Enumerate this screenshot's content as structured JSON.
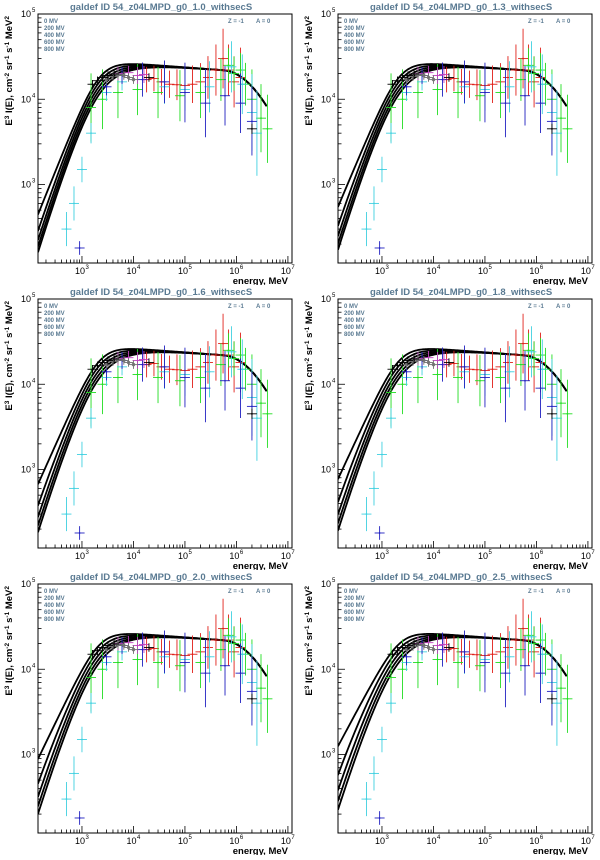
{
  "figure": {
    "legend_labels": [
      "0 MV",
      "200 MV",
      "400 MV",
      "600 MV",
      "800 MV"
    ],
    "z_label": "Z = -1",
    "a_label": "A = 0",
    "xlabel": "energy, MeV",
    "ylabel_parts": [
      "E",
      "3",
      " I(E), cm",
      "-2",
      " sr",
      "-1",
      " s",
      "-1",
      " MeV",
      "2"
    ],
    "x_ticks": [
      {
        "base": "10",
        "exp": "3",
        "value": 1000
      },
      {
        "base": "10",
        "exp": "4",
        "value": 10000
      },
      {
        "base": "10",
        "exp": "5",
        "value": 100000
      },
      {
        "base": "10",
        "exp": "6",
        "value": 1000000
      },
      {
        "base": "10",
        "exp": "7",
        "value": 10000000
      }
    ],
    "y_ticks": [
      {
        "base": "10",
        "exp": "3",
        "value": 1000
      },
      {
        "base": "10",
        "exp": "4",
        "value": 10000
      },
      {
        "base": "10",
        "exp": "5",
        "value": 100000
      }
    ]
  },
  "chart_data": [
    {
      "type": "line",
      "title": "galdef ID 54_z04LMPD_g0_1.0_withsecS",
      "gamma": "1.0",
      "xlabel": "energy, MeV",
      "ylabel": "E^3 I(E), cm^-2 sr^-1 s^-1 MeV^2",
      "xlim": [
        140,
        12000000
      ],
      "ylim": [
        120,
        100000
      ],
      "xscale": "log",
      "yscale": "log",
      "modulation_MV": [
        0,
        200,
        400,
        600,
        800
      ]
    },
    {
      "type": "line",
      "title": "galdef ID 54_z04LMPD_g0_1.3_withsecS",
      "gamma": "1.3",
      "xlabel": "energy, MeV",
      "ylabel": "E^3 I(E), cm^-2 sr^-1 s^-1 MeV^2",
      "xlim": [
        140,
        12000000
      ],
      "ylim": [
        120,
        100000
      ],
      "xscale": "log",
      "yscale": "log",
      "modulation_MV": [
        0,
        200,
        400,
        600,
        800
      ]
    },
    {
      "type": "line",
      "title": "galdef ID 54_z04LMPD_g0_1.6_withsecS",
      "gamma": "1.6",
      "xlabel": "energy, MeV",
      "ylabel": "E^3 I(E), cm^-2 sr^-1 s^-1 MeV^2",
      "xlim": [
        140,
        12000000
      ],
      "ylim": [
        120,
        100000
      ],
      "xscale": "log",
      "yscale": "log",
      "modulation_MV": [
        0,
        200,
        400,
        600,
        800
      ]
    },
    {
      "type": "line",
      "title": "galdef ID 54_z04LMPD_g0_1.8_withsecS",
      "gamma": "1.8",
      "xlabel": "energy, MeV",
      "ylabel": "E^3 I(E), cm^-2 sr^-1 s^-1 MeV^2",
      "xlim": [
        140,
        12000000
      ],
      "ylim": [
        120,
        100000
      ],
      "xscale": "log",
      "yscale": "log",
      "modulation_MV": [
        0,
        200,
        400,
        600,
        800
      ]
    },
    {
      "type": "line",
      "title": "galdef ID 54_z04LMPD_g0_2.0_withsecS",
      "gamma": "2.0",
      "xlabel": "energy, MeV",
      "ylabel": "E^3 I(E), cm^-2 sr^-1 s^-1 MeV^2",
      "xlim": [
        140,
        12000000
      ],
      "ylim": [
        120,
        100000
      ],
      "xscale": "log",
      "yscale": "log",
      "modulation_MV": [
        0,
        200,
        400,
        600,
        800
      ]
    },
    {
      "type": "line",
      "title": "galdef ID 54_z04LMPD_g0_2.5_withsecS",
      "gamma": "2.5",
      "xlabel": "energy, MeV",
      "ylabel": "E^3 I(E), cm^-2 sr^-1 s^-1 MeV^2",
      "xlim": [
        140,
        12000000
      ],
      "ylim": [
        120,
        100000
      ],
      "xscale": "log",
      "yscale": "log",
      "modulation_MV": [
        0,
        200,
        400,
        600,
        800
      ]
    }
  ],
  "datasets": [
    {
      "name": "red",
      "color": "#e0201a",
      "marker": "cross",
      "points": [
        [
          18000,
          17000,
          0.15
        ],
        [
          25000,
          17500,
          0.15
        ],
        [
          35000,
          16000,
          0.15
        ],
        [
          50000,
          15000,
          0.16
        ],
        [
          70000,
          14800,
          0.18
        ],
        [
          100000,
          14500,
          0.2
        ],
        [
          140000,
          15000,
          0.22
        ],
        [
          200000,
          16000,
          0.22
        ],
        [
          280000,
          18000,
          0.25
        ],
        [
          400000,
          22000,
          0.3
        ],
        [
          550000,
          30000,
          0.35
        ],
        [
          700000,
          22000,
          0.3
        ],
        [
          900000,
          16000,
          0.3
        ],
        [
          1200000,
          18000,
          0.35
        ]
      ]
    },
    {
      "name": "green",
      "color": "#22dd22",
      "marker": "cross",
      "points": [
        [
          1500,
          8000,
          0.4
        ],
        [
          2500,
          10000,
          0.35
        ],
        [
          5000,
          12000,
          0.3
        ],
        [
          12000,
          13000,
          0.3
        ],
        [
          30000,
          12000,
          0.3
        ],
        [
          80000,
          11000,
          0.3
        ],
        [
          200000,
          12000,
          0.3
        ],
        [
          500000,
          17000,
          0.25
        ],
        [
          700000,
          25000,
          0.2
        ],
        [
          900000,
          20000,
          0.2
        ],
        [
          1200000,
          22000,
          0.2
        ],
        [
          1500000,
          15000,
          0.25
        ],
        [
          2000000,
          10000,
          0.35
        ],
        [
          3000000,
          6000,
          0.4
        ],
        [
          4000000,
          4500,
          0.4
        ]
      ]
    },
    {
      "name": "cyan",
      "color": "#3fd0e0",
      "marker": "cross",
      "points": [
        [
          500,
          300,
          0.2
        ],
        [
          700,
          600,
          0.2
        ],
        [
          1000,
          1500,
          0.15
        ],
        [
          1500,
          4000,
          0.12
        ],
        [
          3000,
          12000,
          0.1
        ],
        [
          6000,
          16000,
          0.1
        ],
        [
          40000,
          14000,
          0.2
        ],
        [
          100000,
          13000,
          0.25
        ],
        [
          300000,
          14000,
          0.3
        ],
        [
          800000,
          24000,
          0.3
        ],
        [
          1300000,
          15000,
          0.35
        ],
        [
          2000000,
          7000,
          0.45
        ],
        [
          2500000,
          4000,
          0.5
        ]
      ]
    },
    {
      "name": "blue",
      "color": "#2020c0",
      "marker": "cross",
      "points": [
        [
          900,
          180,
          0.08
        ],
        [
          3000,
          14000,
          0.1
        ],
        [
          6000,
          19000,
          0.1
        ],
        [
          15000,
          17000,
          0.2
        ],
        [
          40000,
          16000,
          0.25
        ],
        [
          100000,
          12000,
          0.35
        ],
        [
          250000,
          9000,
          0.4
        ],
        [
          600000,
          11000,
          0.35
        ],
        [
          1200000,
          9000,
          0.35
        ],
        [
          2000000,
          5500,
          0.4
        ]
      ]
    },
    {
      "name": "magenta",
      "color": "#c040c0",
      "marker": "cross",
      "points": [
        [
          5000,
          20000,
          0.08
        ],
        [
          8000,
          20500,
          0.08
        ],
        [
          12000,
          19000,
          0.1
        ],
        [
          16000,
          19500,
          0.1
        ]
      ]
    },
    {
      "name": "gray",
      "color": "#707070",
      "marker": "circle",
      "points": [
        [
          3000,
          17000,
          0.05
        ],
        [
          4000,
          18500,
          0.05
        ],
        [
          5000,
          19500,
          0.05
        ],
        [
          6500,
          19000,
          0.05
        ],
        [
          8000,
          18000,
          0.05
        ],
        [
          10000,
          17000,
          0.05
        ]
      ]
    },
    {
      "name": "black",
      "color": "#000000",
      "marker": "cross",
      "points": [
        [
          1600,
          15000,
          0.05
        ],
        [
          2000,
          16500,
          0.05
        ],
        [
          2500,
          18000,
          0.05
        ],
        [
          3200,
          19000,
          0.05
        ],
        [
          4200,
          19800,
          0.05
        ],
        [
          20000,
          18000,
          0.05
        ],
        [
          2000000,
          4500,
          0.06
        ]
      ]
    }
  ]
}
